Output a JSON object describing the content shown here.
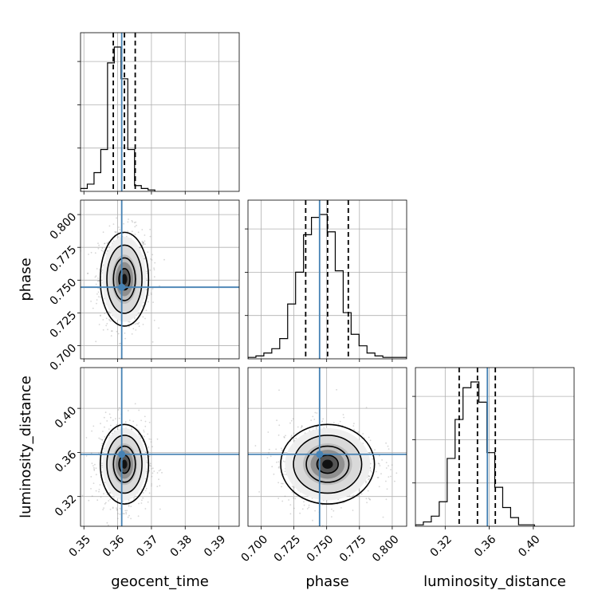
{
  "chart_data": {
    "type": "corner",
    "parameters": [
      {
        "name": "geocent_time",
        "label": "geocent_time",
        "range": [
          0.349,
          0.396
        ],
        "ticks": [
          0.35,
          0.36,
          0.37,
          0.38,
          0.39
        ],
        "tick_labels": [
          "0.35",
          "0.36",
          "0.37",
          "0.38",
          "0.39"
        ],
        "truth": 0.3612,
        "quantiles": [
          0.3587,
          0.362,
          0.3652
        ],
        "hist_bins_start": 0.349,
        "hist_bin_width": 0.002,
        "hist_counts": [
          0.02,
          0.05,
          0.13,
          0.29,
          0.89,
          1.0,
          0.78,
          0.29,
          0.04,
          0.02,
          0.01
        ]
      },
      {
        "name": "phase",
        "label": "phase",
        "range": [
          0.69,
          0.811
        ],
        "ticks": [
          0.7,
          0.725,
          0.75,
          0.775,
          0.8
        ],
        "tick_labels": [
          "0.700",
          "0.725",
          "0.750",
          "0.775",
          "0.800"
        ],
        "truth": 0.7446,
        "quantiles": [
          0.734,
          0.7507,
          0.7665
        ],
        "hist_bins_start": 0.69,
        "hist_bin_width": 0.00605,
        "hist_counts": [
          0.01,
          0.02,
          0.04,
          0.07,
          0.14,
          0.38,
          0.6,
          0.86,
          0.98,
          1.0,
          0.88,
          0.61,
          0.32,
          0.17,
          0.09,
          0.04,
          0.02,
          0.01,
          0.01,
          0.01
        ]
      },
      {
        "name": "luminosity_distance",
        "label": "luminosity_distance",
        "range": [
          0.293,
          0.437
        ],
        "ticks": [
          0.32,
          0.36,
          0.4
        ],
        "tick_labels": [
          "0.32",
          "0.36",
          "0.40"
        ],
        "truth": 0.3583,
        "quantiles": [
          0.3327,
          0.3493,
          0.3655
        ],
        "hist_bins_start": 0.293,
        "hist_bin_width": 0.0072,
        "hist_counts": [
          0.01,
          0.03,
          0.07,
          0.17,
          0.47,
          0.74,
          0.96,
          1.0,
          0.86,
          0.51,
          0.27,
          0.13,
          0.06,
          0.01,
          0.01
        ]
      }
    ],
    "grid": true,
    "truth_color": "#4682b4",
    "hist_color": "#000000",
    "quantile_style": "dashed"
  }
}
